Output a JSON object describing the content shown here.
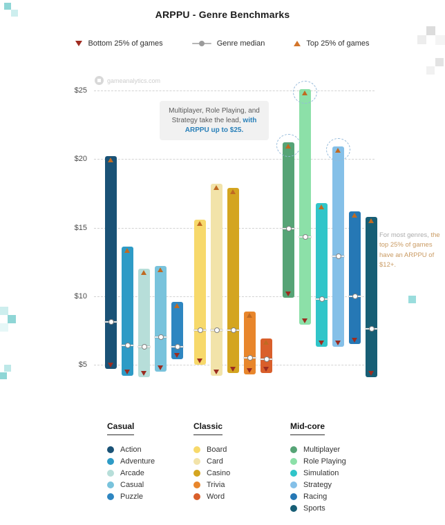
{
  "page": {
    "title": "ARPPU - Genre Benchmarks",
    "watermark_text": "gameanalytics.com"
  },
  "top_legend": {
    "bottom_label": "Bottom 25% of games",
    "median_label": "Genre median",
    "top_label": "Top 25% of games"
  },
  "callout": {
    "text_plain": "Multiplayer, Role Playing, and Strategy take the lead, ",
    "text_highlight": "with ARPPU up to $25."
  },
  "side_note": {
    "text_plain": "For most genres, ",
    "text_highlight": "the top 25% of games have an ARPPU of $12+."
  },
  "colors": {
    "top_marker": "#d3752a",
    "bottom_marker": "#9b2c20",
    "median_dot_border": "#808080",
    "highlight_blue": "#2980b9",
    "dashed_circle": "#93b9da",
    "gridline": "#d2d2d2"
  },
  "chart_data": {
    "type": "range-bar",
    "title": "ARPPU - Genre Benchmarks",
    "unit": "USD",
    "ylim": [
      2,
      27
    ],
    "grid": "dashed horizontal",
    "ticks": [
      {
        "label": "$5",
        "value": 5
      },
      {
        "label": "$10",
        "value": 10
      },
      {
        "label": "$15",
        "value": 15
      },
      {
        "label": "$20",
        "value": 20
      },
      {
        "label": "$25",
        "value": 25
      }
    ],
    "series_semantics": "each bar spans from bottom 25% (low) to top 25% (high) of games; median marker shown",
    "groups": [
      {
        "name": "Casual",
        "genres": [
          {
            "label": "Action",
            "color": "#1a5276",
            "low": 4.7,
            "median": 8.1,
            "high": 20.2
          },
          {
            "label": "Adventure",
            "color": "#2e9bc6",
            "low": 4.2,
            "median": 6.4,
            "high": 13.6
          },
          {
            "label": "Arcade",
            "color": "#b7ded9",
            "low": 4.1,
            "median": 6.3,
            "high": 12.0
          },
          {
            "label": "Casual",
            "color": "#79c3dc",
            "low": 4.5,
            "median": 7.0,
            "high": 12.2
          },
          {
            "label": "Puzzle",
            "color": "#2e86c1",
            "low": 5.4,
            "median": 6.3,
            "high": 9.6
          }
        ]
      },
      {
        "name": "Classic",
        "genres": [
          {
            "label": "Board",
            "color": "#f7d96b",
            "low": 5.0,
            "median": 7.5,
            "high": 15.6
          },
          {
            "label": "Card",
            "color": "#f2e3a9",
            "low": 4.2,
            "median": 7.5,
            "high": 18.2
          },
          {
            "label": "Casino",
            "color": "#d4a520",
            "low": 4.4,
            "median": 7.5,
            "high": 17.9
          },
          {
            "label": "Trivia",
            "color": "#e8862c",
            "low": 4.3,
            "median": 5.5,
            "high": 8.9
          },
          {
            "label": "Word",
            "color": "#d95f2b",
            "low": 4.4,
            "median": 5.4,
            "high": 6.9
          }
        ]
      },
      {
        "name": "Mid-core",
        "genres": [
          {
            "label": "Multiplayer",
            "color": "#56a476",
            "low": 9.9,
            "median": 14.9,
            "high": 21.2,
            "circled": true
          },
          {
            "label": "Role Playing",
            "color": "#8ce0a8",
            "low": 7.9,
            "median": 14.3,
            "high": 25.1,
            "circled": true
          },
          {
            "label": "Simulation",
            "color": "#30c5c9",
            "low": 6.3,
            "median": 9.8,
            "high": 16.8
          },
          {
            "label": "Strategy",
            "color": "#85c0e8",
            "low": 6.3,
            "median": 12.9,
            "high": 20.9,
            "circled": true
          },
          {
            "label": "Racing",
            "color": "#2678b5",
            "low": 6.5,
            "median": 10.0,
            "high": 16.2
          },
          {
            "label": "Sports",
            "color": "#175e75",
            "low": 4.1,
            "median": 7.6,
            "high": 15.8
          }
        ]
      }
    ]
  }
}
